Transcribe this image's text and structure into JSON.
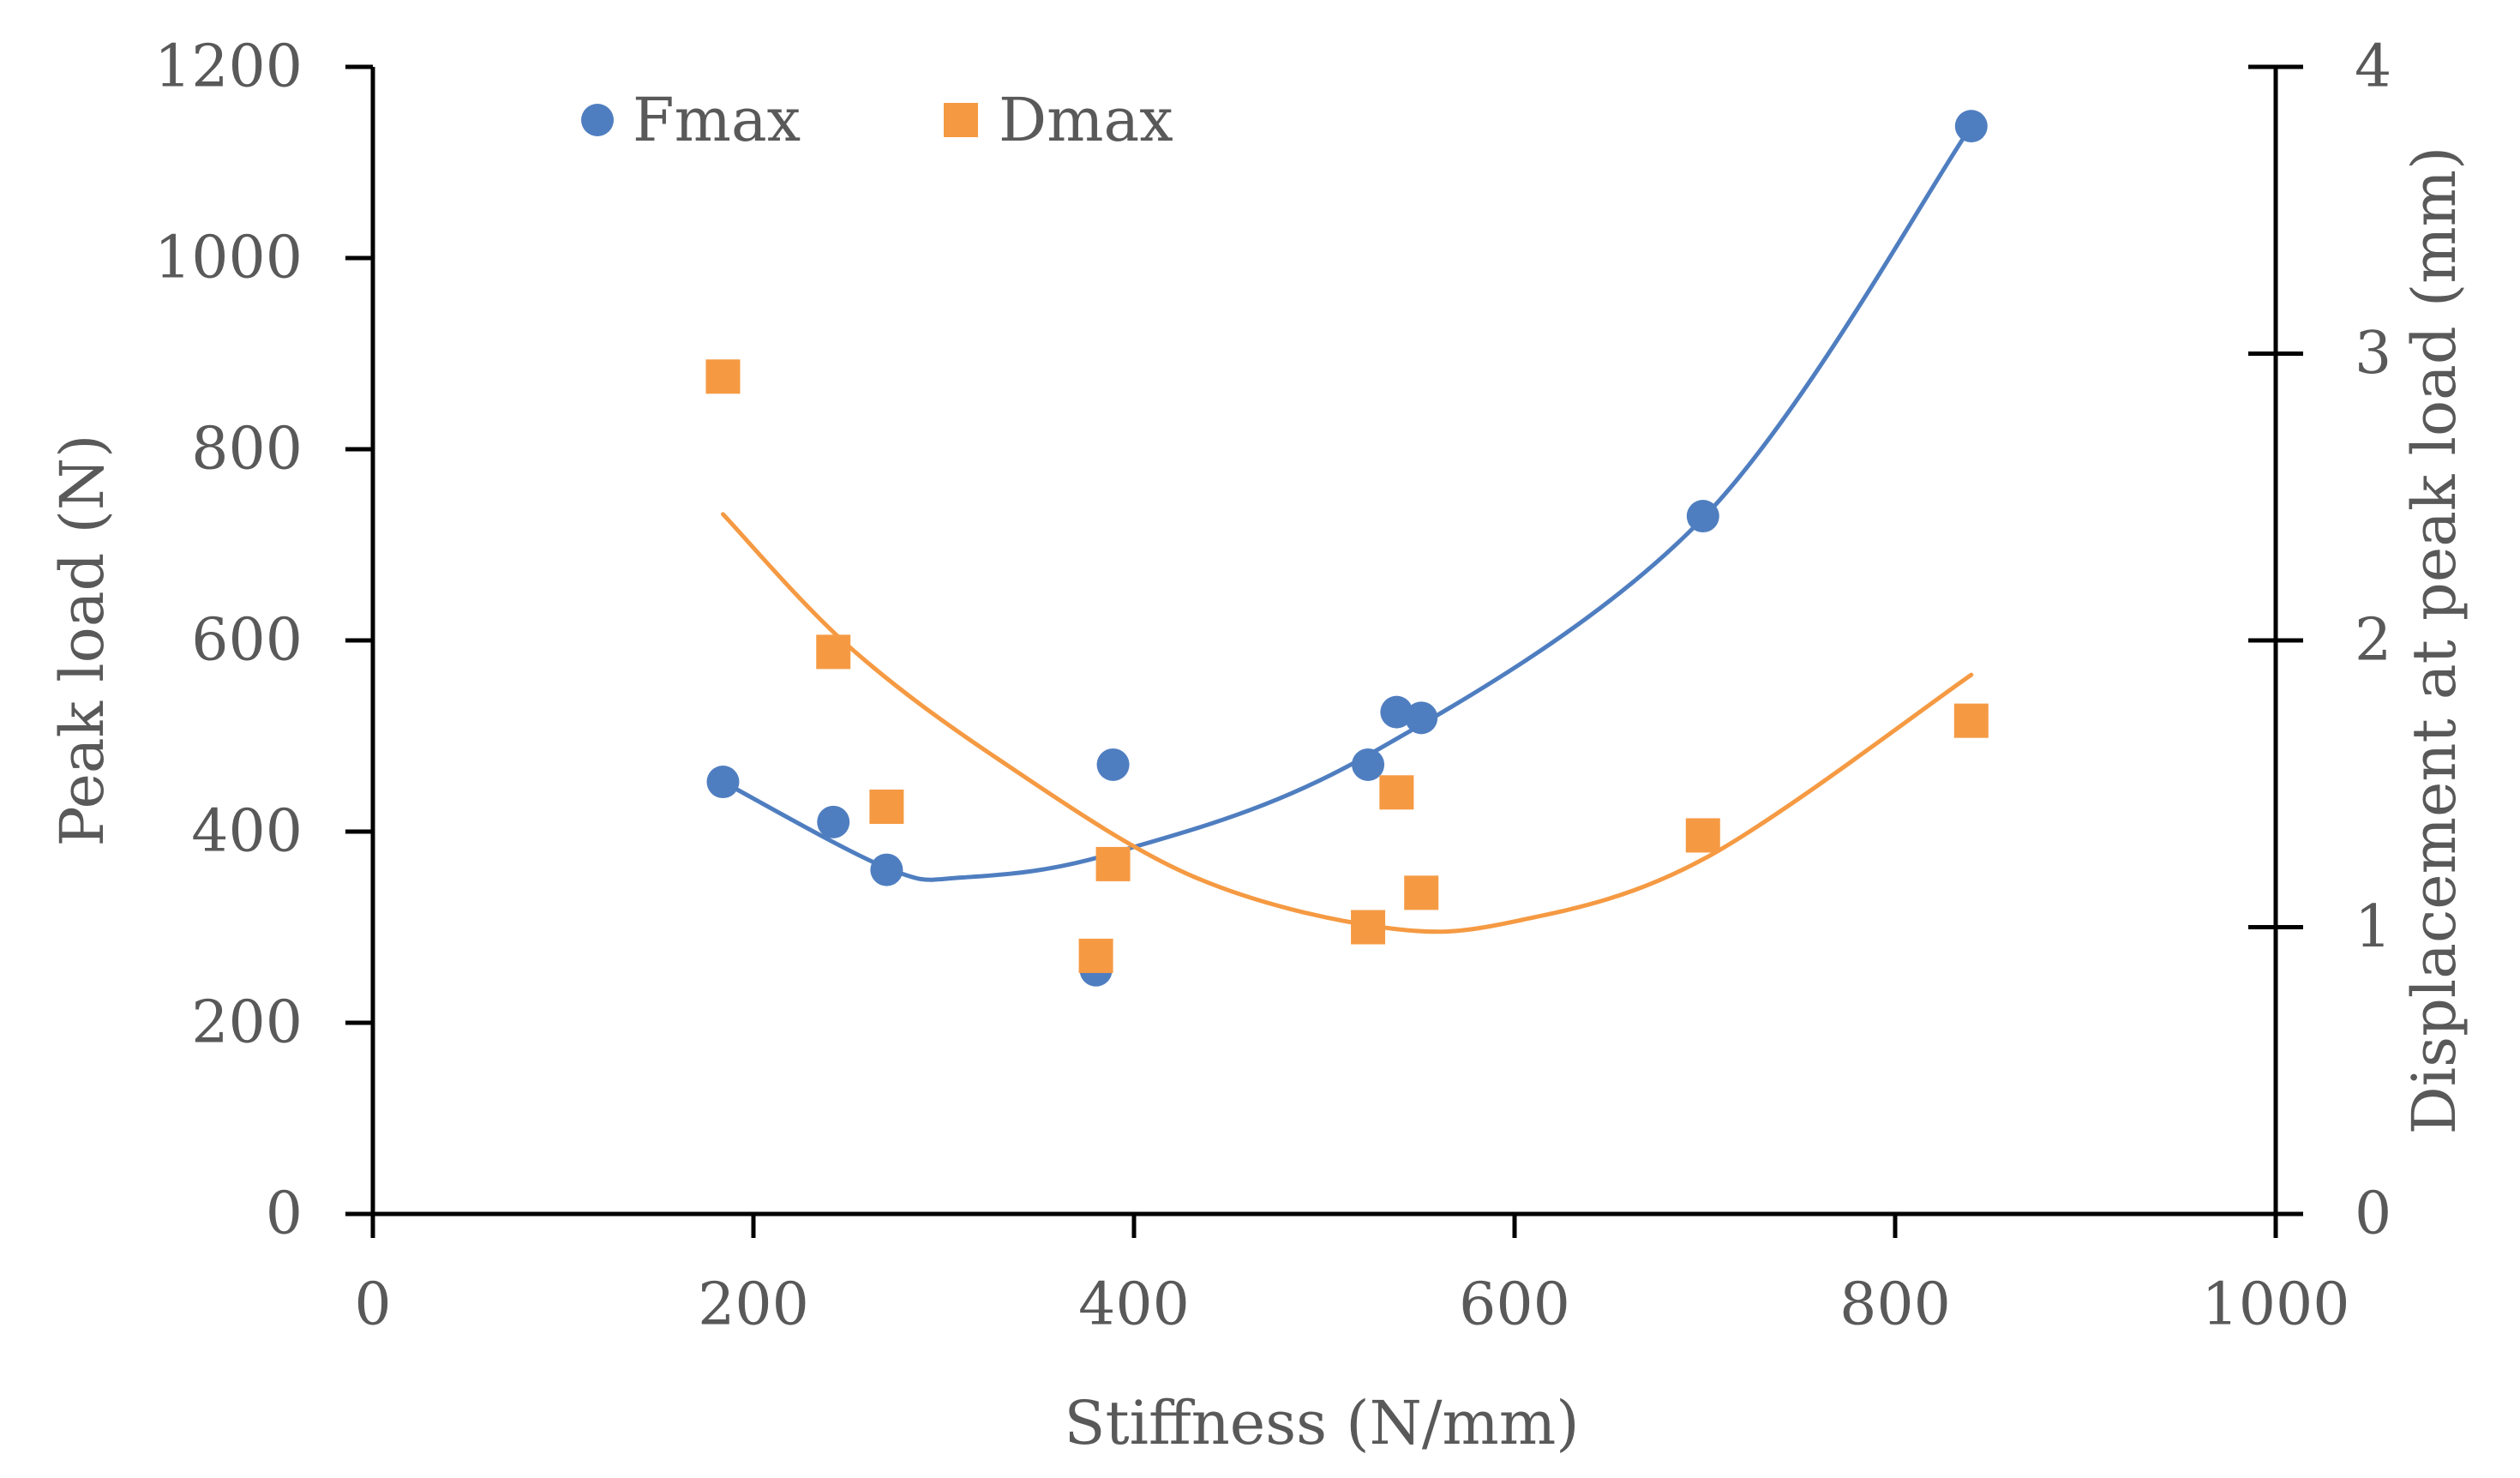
{
  "chart_data": {
    "type": "scatter",
    "title": "",
    "xlabel": "Stiffness (N/mm)",
    "ylabel": "Peak load (N)",
    "y2label": "Displacement at peak load (mm)",
    "xlim": [
      0,
      1000
    ],
    "ylim": [
      0,
      1200
    ],
    "y2lim": [
      0,
      4
    ],
    "x_ticks": [
      "0",
      "200",
      "400",
      "600",
      "800",
      "1000"
    ],
    "y_ticks": [
      "0",
      "200",
      "400",
      "600",
      "800",
      "1000",
      "1200"
    ],
    "y2_ticks": [
      "0",
      "1",
      "2",
      "3",
      "4"
    ],
    "grid": false,
    "legend_position": "top-left",
    "series": [
      {
        "name": "Fmax",
        "axis": "left",
        "marker": "circle",
        "color": "#4F7EC0",
        "points": [
          {
            "x": 184,
            "y": 452
          },
          {
            "x": 242,
            "y": 410
          },
          {
            "x": 270,
            "y": 360
          },
          {
            "x": 380,
            "y": 255
          },
          {
            "x": 389,
            "y": 470
          },
          {
            "x": 523,
            "y": 470
          },
          {
            "x": 538,
            "y": 525
          },
          {
            "x": 551,
            "y": 519
          },
          {
            "x": 699,
            "y": 730
          },
          {
            "x": 840,
            "y": 1138
          }
        ],
        "trendline": {
          "type": "polynomial",
          "x_range": [
            184,
            840
          ],
          "control_points": [
            [
              184,
              452
            ],
            [
              270,
              362
            ],
            [
              310,
              352
            ],
            [
              390,
              378
            ],
            [
              523,
              480
            ],
            [
              700,
              730
            ],
            [
              840,
              1138
            ]
          ]
        }
      },
      {
        "name": "Dmax",
        "axis": "right",
        "marker": "square",
        "color": "#F59A43",
        "points": [
          {
            "x": 184,
            "y": 2.92
          },
          {
            "x": 242,
            "y": 1.96
          },
          {
            "x": 270,
            "y": 1.42
          },
          {
            "x": 380,
            "y": 0.9
          },
          {
            "x": 389,
            "y": 1.22
          },
          {
            "x": 523,
            "y": 1.0
          },
          {
            "x": 538,
            "y": 1.47
          },
          {
            "x": 551,
            "y": 1.12
          },
          {
            "x": 699,
            "y": 1.32
          },
          {
            "x": 840,
            "y": 1.72
          }
        ],
        "trendline": {
          "type": "polynomial",
          "x_range": [
            184,
            840
          ],
          "control_points": [
            [
              184,
              2.44
            ],
            [
              250,
              1.98
            ],
            [
              330,
              1.58
            ],
            [
              430,
              1.18
            ],
            [
              530,
              1.0
            ],
            [
              600,
              1.02
            ],
            [
              700,
              1.24
            ],
            [
              840,
              1.88
            ]
          ]
        }
      }
    ]
  }
}
